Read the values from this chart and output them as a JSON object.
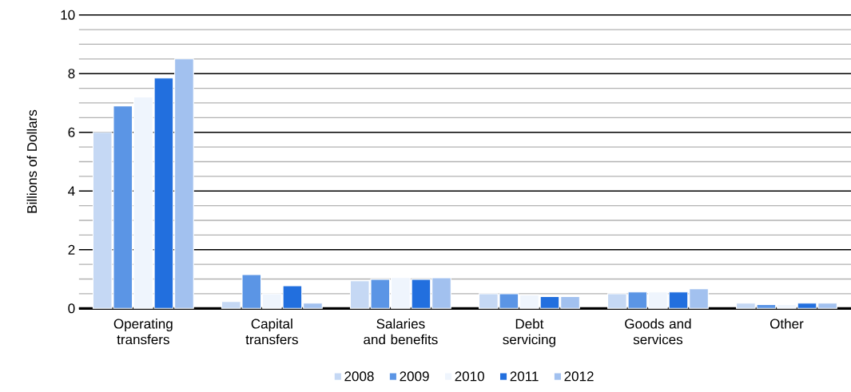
{
  "chart_data": {
    "type": "bar",
    "ylabel": "Billions of Dollars",
    "categories": [
      "Operating transfers",
      "Capital transfers",
      "Salaries and benefits",
      "Debt servicing",
      "Goods and services",
      "Other"
    ],
    "series": [
      {
        "name": "2008",
        "color": "#c5d8f4",
        "values": [
          6.0,
          0.23,
          0.94,
          0.5,
          0.5,
          0.18
        ]
      },
      {
        "name": "2009",
        "color": "#5b95e5",
        "values": [
          6.9,
          1.15,
          0.99,
          0.5,
          0.56,
          0.13
        ]
      },
      {
        "name": "2010",
        "color": "#eff5fd",
        "values": [
          7.2,
          0.5,
          1.05,
          0.46,
          0.56,
          0.13
        ]
      },
      {
        "name": "2011",
        "color": "#226fde",
        "values": [
          7.85,
          0.77,
          0.99,
          0.4,
          0.56,
          0.18
        ]
      },
      {
        "name": "2012",
        "color": "#a2c1ef",
        "values": [
          8.5,
          0.18,
          1.04,
          0.4,
          0.67,
          0.18
        ]
      }
    ],
    "ylim": [
      0,
      10
    ],
    "yticks": [
      0,
      2,
      4,
      6,
      8,
      10
    ],
    "grid": "y",
    "legend": "bottom"
  }
}
